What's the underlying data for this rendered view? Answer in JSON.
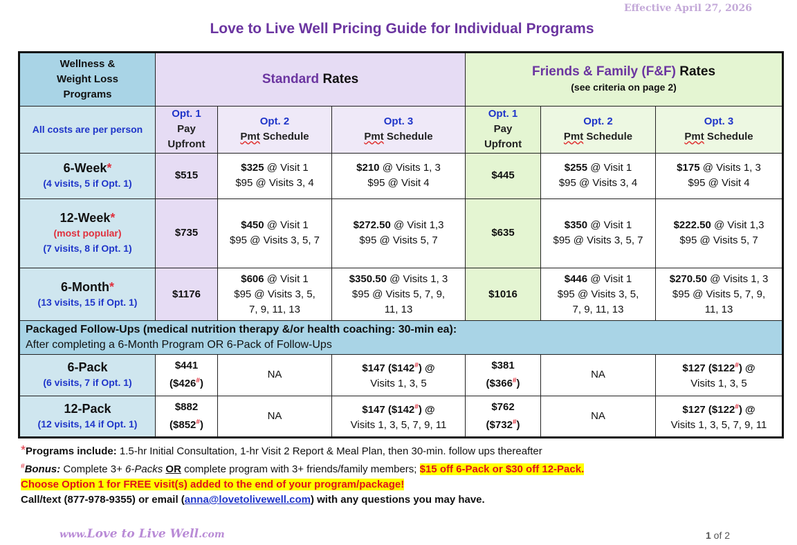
{
  "effective": "Effective April 27, 2026",
  "title": "Love to Live Well Pricing Guide for Individual Programs",
  "header": {
    "programs_line1": "Wellness &",
    "programs_line2": "Weight Loss",
    "programs_line3": "Programs",
    "standard_colored": "Standard",
    "standard_rest": " Rates",
    "ff_colored": "Friends & Family (F&F)",
    "ff_rest": " Rates",
    "ff_sub": "(see criteria on page 2)",
    "costs_note": "All costs are per person",
    "opt1_num": "Opt. 1",
    "opt1_l1": "Pay",
    "opt1_l2": "Upfront",
    "opt2_num": "Opt. 2",
    "opt3_num": "Opt. 3",
    "pmt_a": "Pmt",
    "pmt_b": " Schedule"
  },
  "programs": [
    {
      "name": "6-Week",
      "visits": "(4 visits, 5 if Opt. 1)",
      "popular": "",
      "std_opt1": "$515",
      "std_opt2_a_bold": "$325",
      "std_opt2_a_rest": " @ Visit 1",
      "std_opt2_b": "$95 @ Visits 3, 4",
      "std_opt3_a_bold": "$210",
      "std_opt3_a_rest": " @ Visits 1, 3",
      "std_opt3_b": "$95 @ Visit 4",
      "ff_opt1": "$445",
      "ff_opt2_a_bold": "$255",
      "ff_opt2_a_rest": " @ Visit 1",
      "ff_opt2_b": "$95 @ Visits 3, 4",
      "ff_opt3_a_bold": "$175",
      "ff_opt3_a_rest": " @ Visits 1, 3",
      "ff_opt3_b": "$95 @ Visit 4"
    },
    {
      "name": "12-Week",
      "popular": "(most popular)",
      "visits": "(7 visits, 8 if Opt. 1)",
      "std_opt1": "$735",
      "std_opt2_a_bold": "$450",
      "std_opt2_a_rest": " @ Visit 1",
      "std_opt2_b": "$95 @ Visits 3, 5, 7",
      "std_opt3_a_bold": "$272.50",
      "std_opt3_a_rest": " @ Visit 1,3",
      "std_opt3_b": "$95 @ Visits 5, 7",
      "ff_opt1": "$635",
      "ff_opt2_a_bold": "$350",
      "ff_opt2_a_rest": " @ Visit 1",
      "ff_opt2_b": "$95 @ Visits 3, 5, 7",
      "ff_opt3_a_bold": "$222.50",
      "ff_opt3_a_rest": " @ Visit 1,3",
      "ff_opt3_b": "$95 @ Visits 5, 7"
    },
    {
      "name": "6-Month",
      "visits": "(13 visits, 15 if Opt. 1)",
      "popular": "",
      "std_opt1": "$1176",
      "std_opt2_a_bold": "$606",
      "std_opt2_a_rest": " @ Visit 1",
      "std_opt2_b": "$95 @ Visits 3, 5,",
      "std_opt2_c": "7, 9, 11, 13",
      "std_opt3_a_bold": "$350.50",
      "std_opt3_a_rest": " @ Visits 1, 3",
      "std_opt3_b": "$95 @ Visits 5, 7, 9,",
      "std_opt3_c": "11, 13",
      "ff_opt1": "$1016",
      "ff_opt2_a_bold": "$446",
      "ff_opt2_a_rest": " @ Visit 1",
      "ff_opt2_b": "$95 @ Visits 3, 5,",
      "ff_opt2_c": "7, 9, 11, 13",
      "ff_opt3_a_bold": "$270.50",
      "ff_opt3_a_rest": " @ Visits 1, 3",
      "ff_opt3_b": "$95 @ Visits 5, 7, 9,",
      "ff_opt3_c": "11, 13"
    }
  ],
  "packaged": {
    "title": "Packaged Follow-Ups (medical nutrition therapy &/or health coaching: 30-min ea):",
    "subtitle": "After completing a 6-Month Program OR 6-Pack of Follow-Ups"
  },
  "packs": [
    {
      "name": "6-Pack",
      "visits": "(6 visits, 7 if Opt. 1)",
      "std_opt1_a": "$441",
      "std_opt1_b": "($426",
      "std_opt2": "NA",
      "std_opt3_a": "$147 ($142",
      "std_opt3_a_end": ") @",
      "std_opt3_b": "Visits 1, 3, 5",
      "ff_opt1_a": "$381",
      "ff_opt1_b": "($366",
      "ff_opt2": "NA",
      "ff_opt3_a": "$127 ($122",
      "ff_opt3_a_end": ") @",
      "ff_opt3_b": "Visits 1, 3, 5"
    },
    {
      "name": "12-Pack",
      "visits": "(12 visits, 14 if Opt. 1)",
      "std_opt1_a": "$882",
      "std_opt1_b": "($852",
      "std_opt2": "NA",
      "std_opt3_a": "$147 ($142",
      "std_opt3_a_end": ") @",
      "std_opt3_b": "Visits 1, 3, 5, 7, 9, 11",
      "ff_opt1_a": "$762",
      "ff_opt1_b": "($732",
      "ff_opt2": "NA",
      "ff_opt3_a": "$127 ($122",
      "ff_opt3_a_end": ") @",
      "ff_opt3_b": "Visits 1, 3, 5, 7, 9, 11"
    }
  ],
  "symbols": {
    "star": "*",
    "hash": "#",
    "close_paren": ")"
  },
  "notes": {
    "programs_label": "Programs include:",
    "programs_text": " 1.5-hr Initial Consultation, 1-hr Visit 2 Report & Meal Plan, then 30-min. follow ups thereafter",
    "bonus_label": "Bonus:",
    "bonus_text_a": " Complete 3+ ",
    "bonus_packs": "6-Packs",
    "bonus_or": "OR",
    "bonus_text_b": " complete program with 3+ friends/family members; ",
    "bonus_highlight": "$15 off 6-Pack or $30 off 12-Pack.",
    "option1_line": "Choose Option 1 for FREE visit(s) added to the end of your program/package!",
    "call_a": "Call/text (877-978-9355) or email (",
    "email": "anna@lovetolivewell.com",
    "call_b": ") with any questions you may have."
  },
  "footer": {
    "url_a": "www.",
    "url_b": "Love to Live Well",
    "url_c": ".com",
    "page_a": "1",
    "page_b": " of 2"
  },
  "colors": {
    "purple": "#6b35a0",
    "blue": "#1f35c9",
    "red": "#e0303d",
    "header_blue": "#a9d4e6",
    "lavender": "#e6dcf4",
    "green": "#e4f5d2",
    "highlight": "#ffff00"
  }
}
